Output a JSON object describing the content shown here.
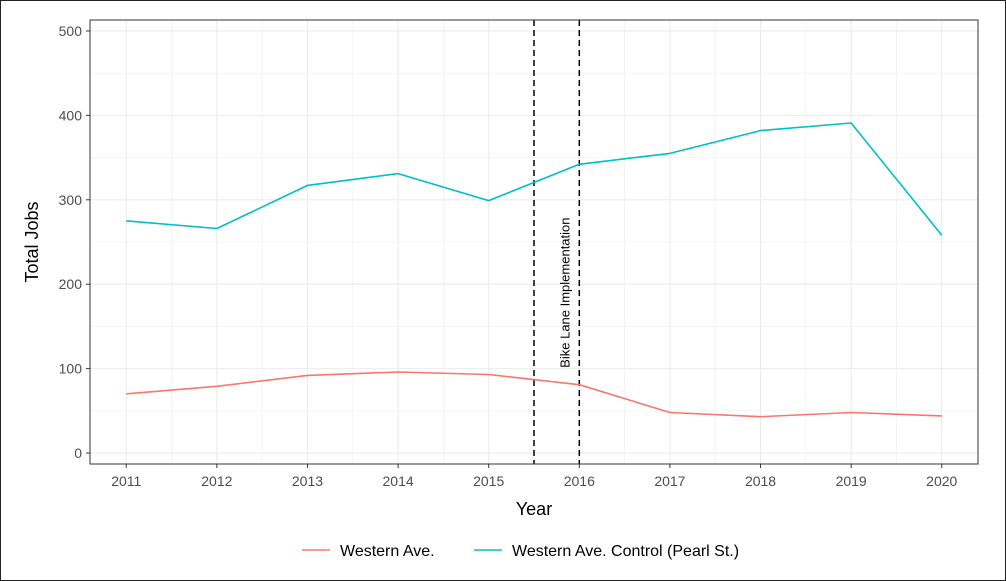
{
  "chart_data": {
    "type": "line",
    "title": "",
    "xlabel": "Year",
    "ylabel": "Total Jobs",
    "x": [
      2011,
      2012,
      2013,
      2014,
      2015,
      2016,
      2017,
      2018,
      2019,
      2020
    ],
    "xlim": [
      2010.6,
      2020.4
    ],
    "ylim": [
      -13,
      513
    ],
    "yticks": [
      0,
      100,
      200,
      300,
      400,
      500
    ],
    "grid": true,
    "legend_position": "bottom",
    "series": [
      {
        "name": "Western Ave.",
        "color": "#f8766d",
        "values": [
          70,
          79,
          92,
          96,
          93,
          81,
          48,
          43,
          48,
          44
        ]
      },
      {
        "name": "Western Ave. Control (Pearl St.)",
        "color": "#00bfc4",
        "values": [
          275,
          266,
          317,
          331,
          299,
          342,
          355,
          382,
          391,
          258
        ]
      }
    ],
    "vlines": [
      2015.5,
      2016
    ],
    "annotation": {
      "text": "Bike Lane Implementation",
      "x": 2015.85,
      "y": 190
    }
  }
}
